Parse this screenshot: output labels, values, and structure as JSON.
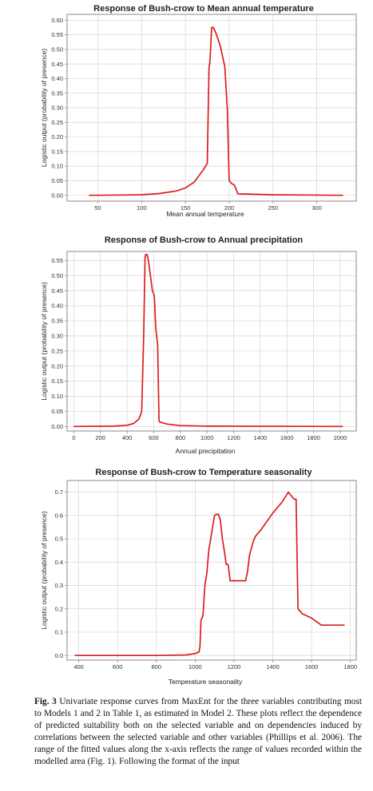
{
  "caption": {
    "label": "Fig. 3",
    "text": "Univariate response curves from MaxEnt for the three variables contributing most to Models 1 and 2 in Table 1, as estimated in Model 2. These plots reflect the dependence of predicted suitability both on the selected variable and on dependencies induced by correlations between the selected variable and other variables (Phillips et al. 2006). The range of the fitted values along the x-axis reflects the range of values recorded within the modelled area (Fig. 1). Following the format of the input"
  },
  "colors": {
    "curve": "#dd1c1c",
    "grid": "#d6d6d6",
    "frame": "#8a8a8a",
    "background": "#ffffff"
  },
  "chart_data": [
    {
      "type": "line",
      "title": "Response of Bush-crow to Mean annual temperature",
      "xlabel": "Mean annual temperature",
      "ylabel": "Logistic output (probability of presence)",
      "xlim": [
        15,
        345
      ],
      "ylim": [
        -0.02,
        0.62
      ],
      "xticks": [
        50,
        100,
        150,
        200,
        250,
        300
      ],
      "yticks": [
        0.0,
        0.05,
        0.1,
        0.15,
        0.2,
        0.25,
        0.3,
        0.35,
        0.4,
        0.45,
        0.5,
        0.55,
        0.6
      ],
      "grid": true,
      "series": [
        {
          "x": [
            40,
            80,
            100,
            120,
            140,
            150,
            160,
            165,
            170,
            175,
            177,
            178,
            180,
            182,
            185,
            190,
            195,
            198,
            200,
            203,
            206,
            210,
            250,
            330
          ],
          "y": [
            0.0,
            0.001,
            0.002,
            0.006,
            0.015,
            0.025,
            0.045,
            0.065,
            0.085,
            0.11,
            0.44,
            0.455,
            0.575,
            0.575,
            0.555,
            0.51,
            0.44,
            0.29,
            0.05,
            0.04,
            0.035,
            0.005,
            0.002,
            0.0
          ]
        }
      ]
    },
    {
      "type": "line",
      "title": "Response of Bush-crow to Annual precipitation",
      "xlabel": "Annual precipitation",
      "ylabel": "Logistic output (probability of presence)",
      "xlim": [
        -50,
        2120
      ],
      "ylim": [
        -0.015,
        0.58
      ],
      "xticks": [
        0,
        200,
        400,
        600,
        800,
        1000,
        1200,
        1400,
        1600,
        1800,
        2000
      ],
      "yticks": [
        0.0,
        0.05,
        0.1,
        0.15,
        0.2,
        0.25,
        0.3,
        0.35,
        0.4,
        0.45,
        0.5,
        0.55
      ],
      "grid": true,
      "series": [
        {
          "x": [
            0,
            300,
            400,
            450,
            490,
            510,
            525,
            535,
            540,
            550,
            560,
            575,
            590,
            600,
            605,
            615,
            630,
            640,
            645,
            700,
            800,
            1000,
            2020
          ],
          "y": [
            0.0,
            0.001,
            0.004,
            0.01,
            0.025,
            0.05,
            0.3,
            0.56,
            0.57,
            0.57,
            0.55,
            0.5,
            0.45,
            0.44,
            0.43,
            0.33,
            0.27,
            0.02,
            0.015,
            0.008,
            0.003,
            0.001,
            0.0
          ]
        }
      ]
    },
    {
      "type": "line",
      "title": "Response of Bush-crow to Temperature seasonality",
      "xlabel": "Temperature seasonality",
      "ylabel": "Logistic output (probability of presence)",
      "xlim": [
        340,
        1830
      ],
      "ylim": [
        -0.02,
        0.75
      ],
      "xticks": [
        400,
        600,
        800,
        1000,
        1200,
        1400,
        1600,
        1800
      ],
      "yticks": [
        0.0,
        0.1,
        0.2,
        0.3,
        0.4,
        0.5,
        0.6,
        0.7
      ],
      "ytick_labels": [
        "0.0",
        "0.1",
        "0.2",
        "0.3",
        "0.4",
        "0.5",
        "0.6",
        "0.7"
      ],
      "grid": true,
      "series": [
        {
          "x": [
            380,
            800,
            950,
            1000,
            1020,
            1025,
            1030,
            1040,
            1050,
            1060,
            1070,
            1080,
            1090,
            1100,
            1110,
            1120,
            1130,
            1140,
            1150,
            1160,
            1170,
            1180,
            1260,
            1270,
            1280,
            1290,
            1300,
            1310,
            1340,
            1400,
            1450,
            1480,
            1500,
            1510,
            1520,
            1530,
            1550,
            1600,
            1650,
            1770
          ],
          "y": [
            0.0,
            0.0,
            0.002,
            0.008,
            0.015,
            0.04,
            0.15,
            0.17,
            0.3,
            0.35,
            0.45,
            0.5,
            0.55,
            0.6,
            0.605,
            0.605,
            0.58,
            0.5,
            0.45,
            0.39,
            0.39,
            0.32,
            0.32,
            0.36,
            0.43,
            0.46,
            0.49,
            0.51,
            0.54,
            0.61,
            0.66,
            0.7,
            0.68,
            0.67,
            0.67,
            0.2,
            0.18,
            0.16,
            0.13,
            0.13
          ]
        }
      ]
    }
  ]
}
